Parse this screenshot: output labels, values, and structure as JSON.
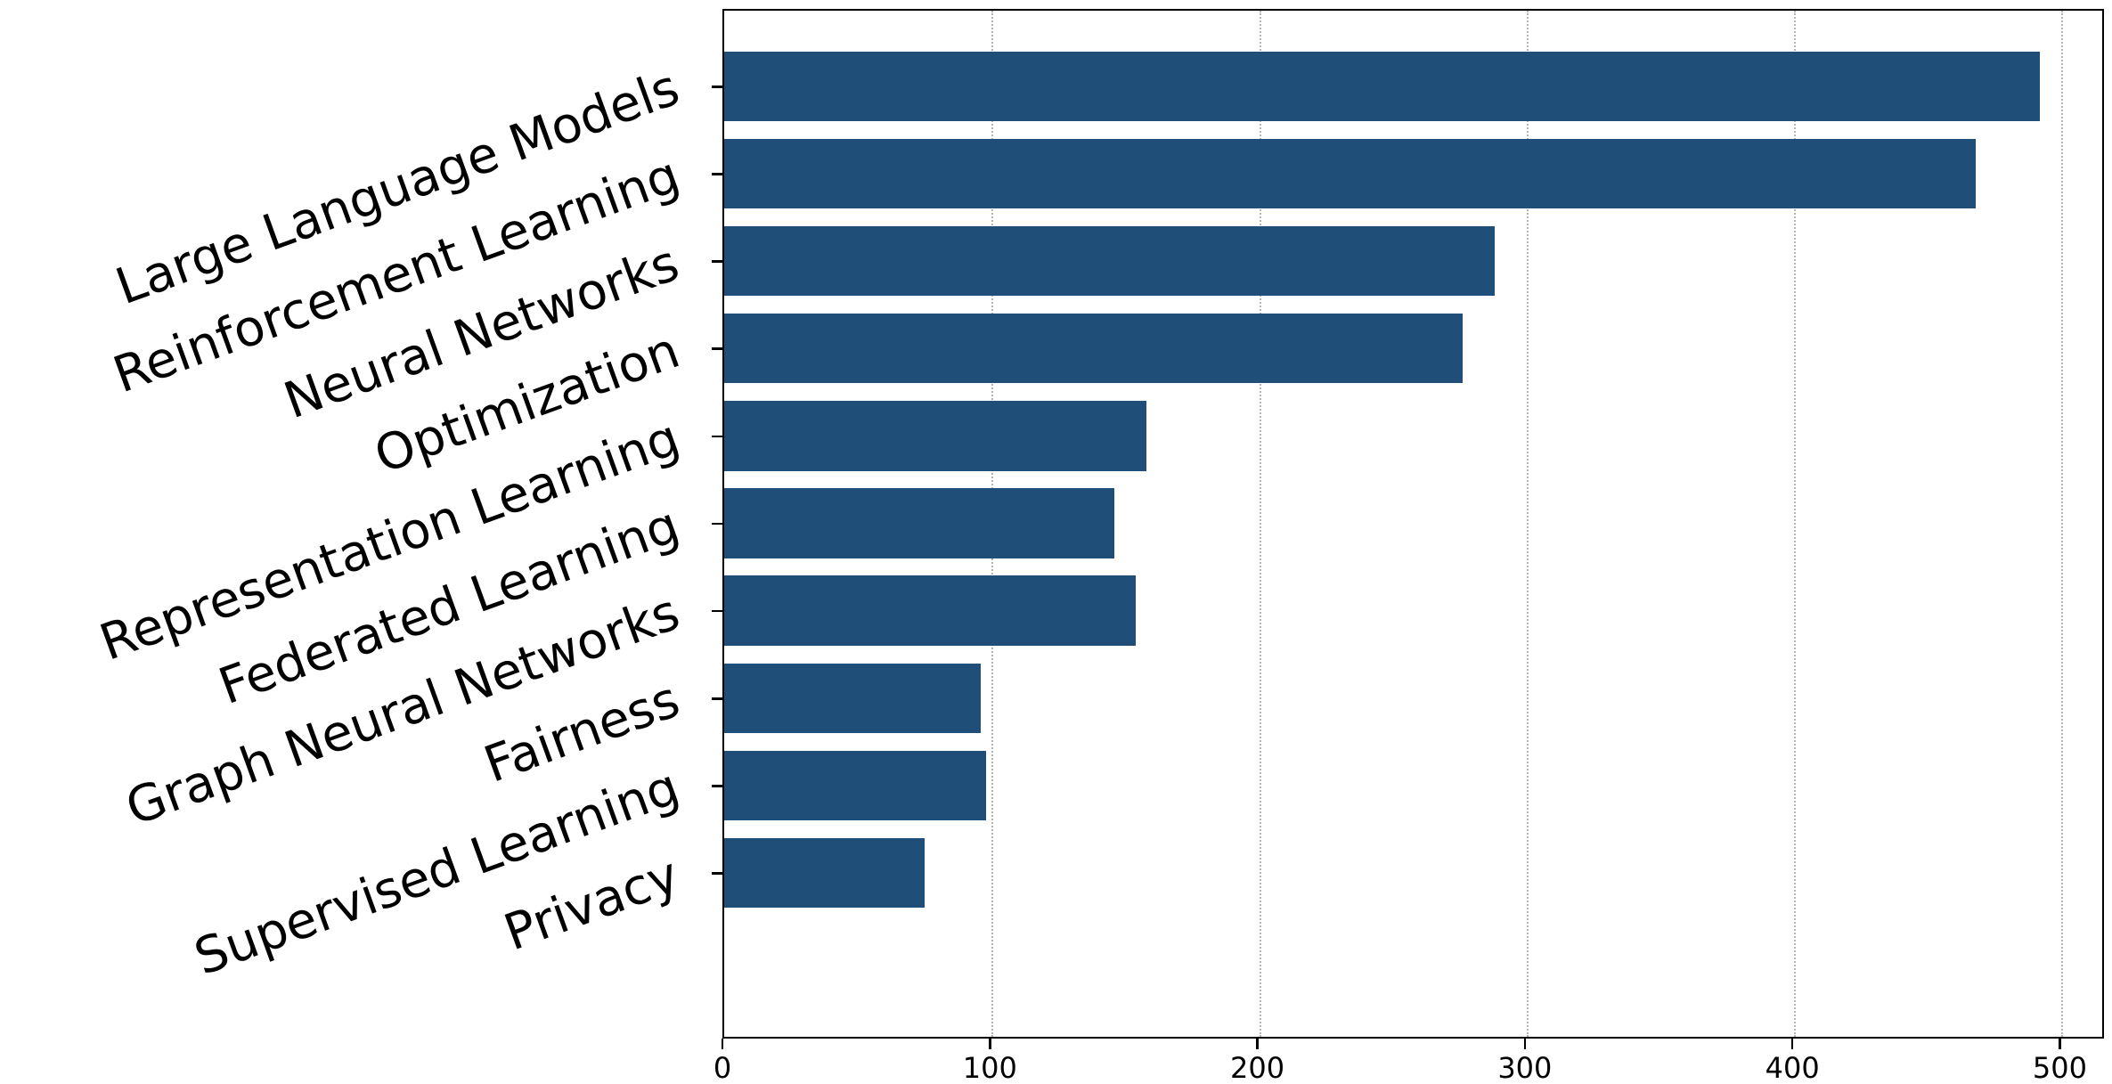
{
  "figure": {
    "background": "#ffffff",
    "text_color": "#000000",
    "spine_color": "#000000"
  },
  "chart_data": {
    "type": "bar",
    "orientation": "horizontal",
    "categories": [
      "Large Language Models",
      "Reinforcement Learning",
      "Neural Networks",
      "Optimization",
      "Representation Learning",
      "Federated Learning",
      "Graph Neural Networks",
      "Fairness",
      "Supervised Learning",
      "Privacy"
    ],
    "values": [
      492,
      468,
      288,
      276,
      158,
      146,
      154,
      96,
      98,
      75
    ],
    "title": "",
    "xlabel": "",
    "ylabel": "",
    "xlim": [
      0,
      516.5
    ],
    "xticks": [
      0,
      100,
      200,
      300,
      400,
      500
    ],
    "xtick_labels": [
      "0",
      "100",
      "200",
      "300",
      "400",
      "500"
    ],
    "grid": {
      "axis": "x",
      "style": "dotted",
      "color": "#b4b4b4"
    },
    "legend": null,
    "bar_color": "#1f4e79",
    "bar_height_fraction": 0.8,
    "category_label_rotation_deg": 20
  }
}
